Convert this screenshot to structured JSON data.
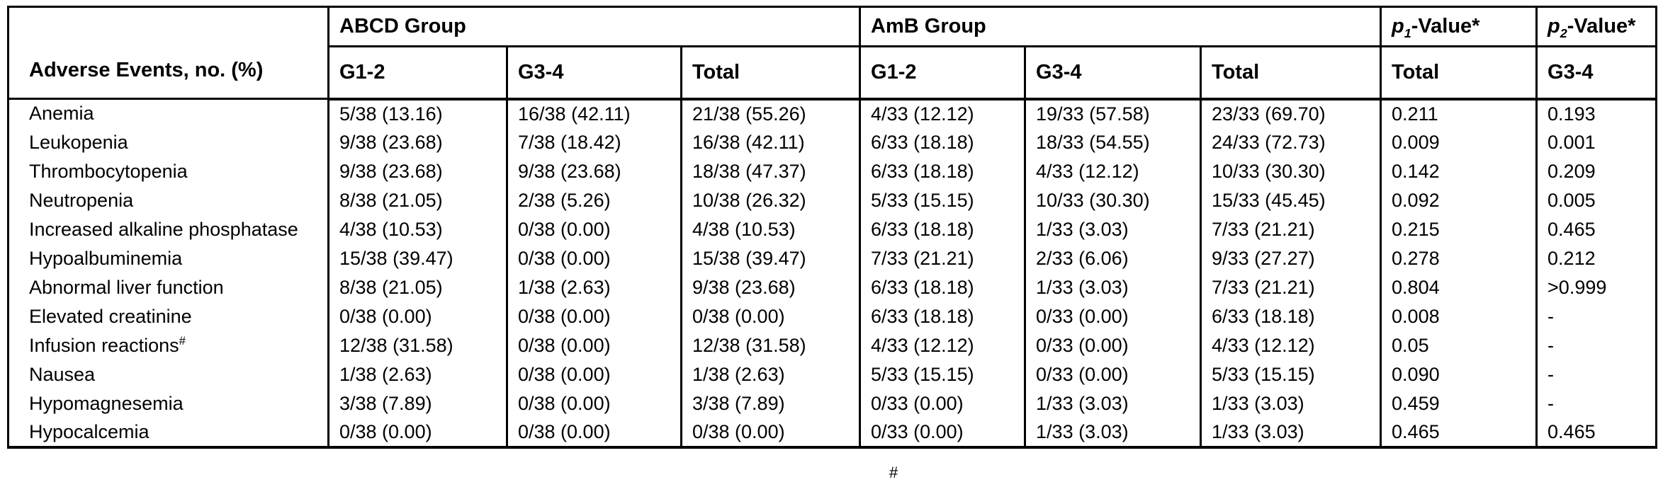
{
  "table": {
    "header": {
      "row_label": "Adverse Events, no. (%)",
      "group1": "ABCD Group",
      "group2": "AmB Group",
      "p1": {
        "p": "p",
        "sub": "1",
        "rest": "-Value*"
      },
      "p2": {
        "p": "p",
        "sub": "2",
        "rest": "-Value*"
      },
      "subcols": [
        "G1-2",
        "G3-4",
        "Total",
        "G1-2",
        "G3-4",
        "Total",
        "Total",
        "G3-4"
      ]
    },
    "rows": [
      {
        "label": "Anemia",
        "sup": "",
        "cells": [
          "5/38 (13.16)",
          "16/38 (42.11)",
          "21/38 (55.26)",
          "4/33 (12.12)",
          "19/33 (57.58)",
          "23/33 (69.70)",
          "0.211",
          "0.193"
        ]
      },
      {
        "label": "Leukopenia",
        "sup": "",
        "cells": [
          "9/38 (23.68)",
          "7/38 (18.42)",
          "16/38 (42.11)",
          "6/33 (18.18)",
          "18/33 (54.55)",
          "24/33 (72.73)",
          "0.009",
          "0.001"
        ]
      },
      {
        "label": "Thrombocytopenia",
        "sup": "",
        "cells": [
          "9/38 (23.68)",
          "9/38 (23.68)",
          "18/38 (47.37)",
          "6/33 (18.18)",
          "4/33 (12.12)",
          "10/33 (30.30)",
          "0.142",
          "0.209"
        ]
      },
      {
        "label": "Neutropenia",
        "sup": "",
        "cells": [
          "8/38 (21.05)",
          "2/38 (5.26)",
          "10/38 (26.32)",
          "5/33 (15.15)",
          "10/33 (30.30)",
          "15/33 (45.45)",
          "0.092",
          "0.005"
        ]
      },
      {
        "label": "Increased alkaline phosphatase",
        "sup": "",
        "cells": [
          "4/38 (10.53)",
          "0/38 (0.00)",
          "4/38 (10.53)",
          "6/33 (18.18)",
          "1/33 (3.03)",
          "7/33 (21.21)",
          "0.215",
          "0.465"
        ]
      },
      {
        "label": "Hypoalbuminemia",
        "sup": "",
        "cells": [
          "15/38 (39.47)",
          "0/38 (0.00)",
          "15/38 (39.47)",
          "7/33 (21.21)",
          "2/33 (6.06)",
          "9/33 (27.27)",
          "0.278",
          "0.212"
        ]
      },
      {
        "label": "Abnormal liver function",
        "sup": "",
        "cells": [
          "8/38 (21.05)",
          "1/38 (2.63)",
          "9/38 (23.68)",
          "6/33 (18.18)",
          "1/33 (3.03)",
          "7/33 (21.21)",
          "0.804",
          ">0.999"
        ]
      },
      {
        "label": "Elevated creatinine",
        "sup": "",
        "cells": [
          "0/38 (0.00)",
          "0/38 (0.00)",
          "0/38 (0.00)",
          "6/33 (18.18)",
          "0/33 (0.00)",
          "6/33 (18.18)",
          "0.008",
          "-"
        ]
      },
      {
        "label": "Infusion reactions",
        "sup": "#",
        "cells": [
          "12/38 (31.58)",
          "0/38 (0.00)",
          "12/38 (31.58)",
          "4/33 (12.12)",
          "0/33 (0.00)",
          "4/33 (12.12)",
          "0.05",
          "-"
        ]
      },
      {
        "label": "Nausea",
        "sup": "",
        "cells": [
          "1/38 (2.63)",
          "0/38 (0.00)",
          "1/38 (2.63)",
          "5/33 (15.15)",
          "0/33 (0.00)",
          "5/33 (15.15)",
          "0.090",
          "-"
        ]
      },
      {
        "label": "Hypomagnesemia",
        "sup": "",
        "cells": [
          "3/38 (7.89)",
          "0/38 (0.00)",
          "3/38 (7.89)",
          "0/33 (0.00)",
          "1/33 (3.03)",
          "1/33 (3.03)",
          "0.459",
          "-"
        ]
      },
      {
        "label": "Hypocalcemia",
        "sup": "",
        "cells": [
          "0/38 (0.00)",
          "0/38 (0.00)",
          "0/38 (0.00)",
          "0/33 (0.00)",
          "1/33 (3.03)",
          "1/33 (3.03)",
          "0.465",
          "0.465"
        ]
      }
    ],
    "footnote_fragment": "#"
  }
}
